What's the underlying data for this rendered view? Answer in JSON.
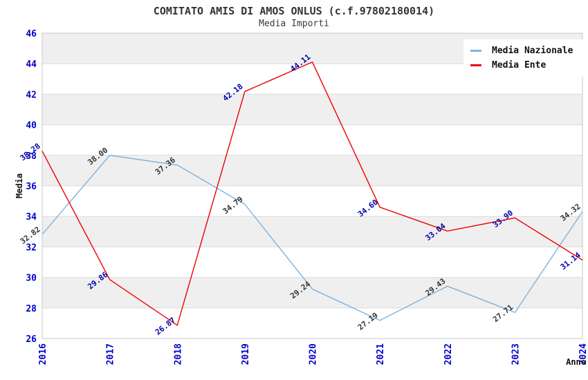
{
  "header": {
    "title": "COMITATO AMIS DI AMOS ONLUS (c.f.97802180014)",
    "subtitle": "Media Importi"
  },
  "chart_data": {
    "type": "line",
    "x": [
      2016,
      2017,
      2018,
      2019,
      2020,
      2021,
      2022,
      2023,
      2024
    ],
    "xlabel": "Anno",
    "ylabel": "Media",
    "ylim": [
      26,
      46
    ],
    "ytick_step": 2,
    "grid": true,
    "alternating_bands": true,
    "legend_position": "top-right",
    "series": [
      {
        "name": "Media Nazionale",
        "color": "#7EB2DE",
        "label_color": "#333333",
        "values": [
          32.82,
          38.0,
          37.36,
          34.79,
          29.24,
          27.19,
          29.43,
          27.71,
          34.32
        ]
      },
      {
        "name": "Media Ente",
        "color": "#EE0000",
        "label_color": "#0000AA",
        "values": [
          38.28,
          29.86,
          26.87,
          42.18,
          44.11,
          34.6,
          33.04,
          33.9,
          31.14
        ]
      }
    ],
    "colors": {
      "tick_label": "#0000CC",
      "band": "#EFEFEF",
      "grid_line": "#DCDCDC",
      "plot_border": "#C9C9C9",
      "axis_text": "#111111",
      "background": "#FFFFFF"
    }
  }
}
